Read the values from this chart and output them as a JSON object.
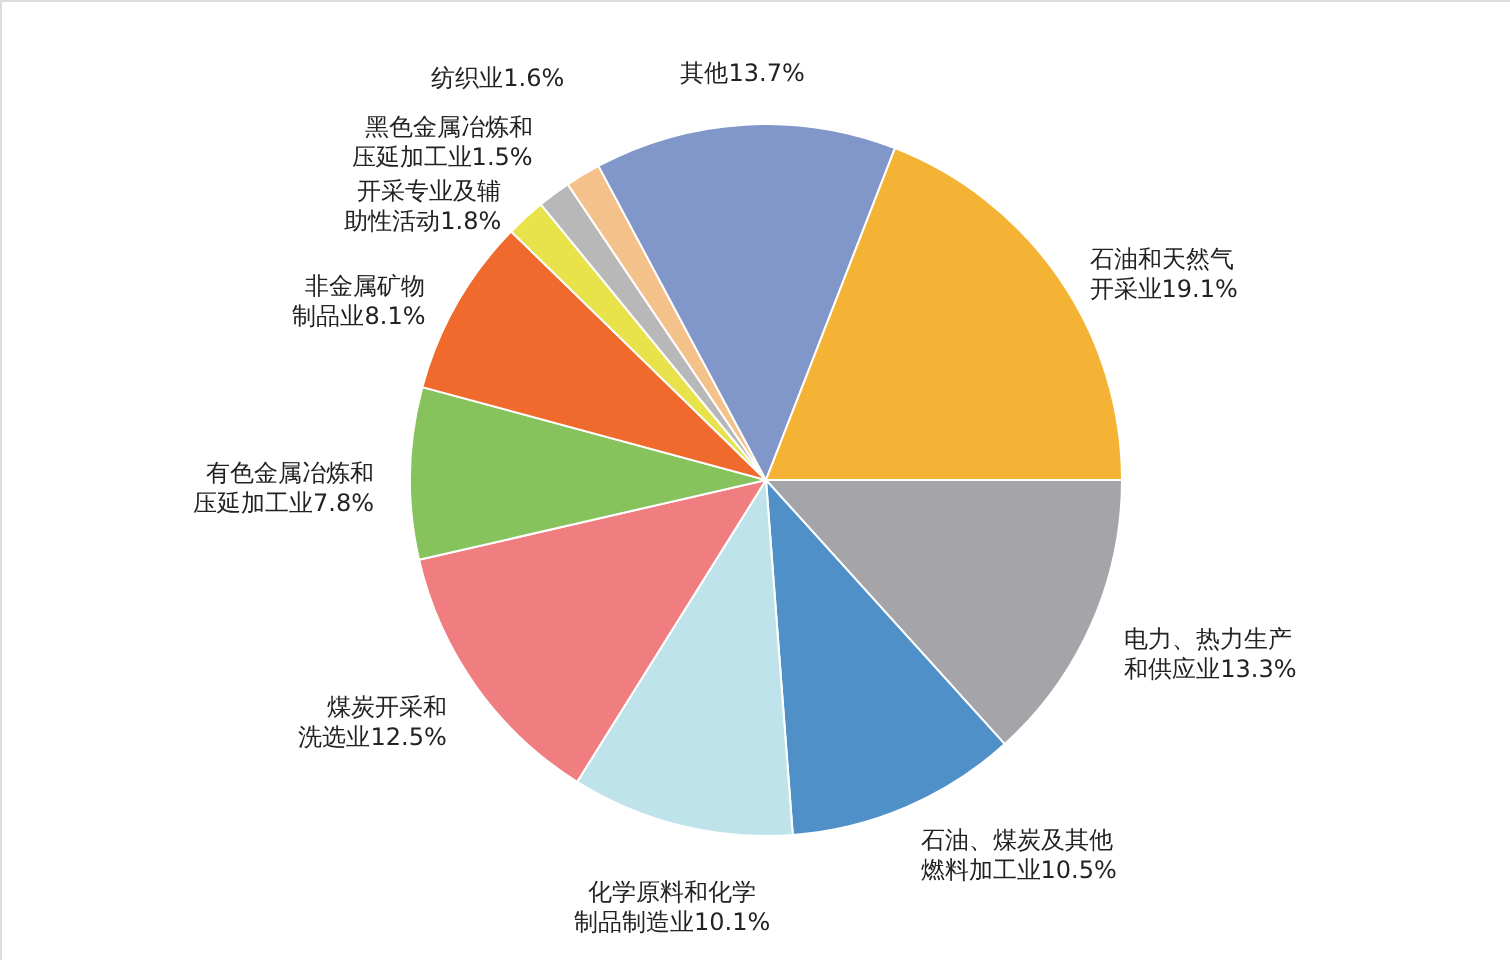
{
  "chart_data": {
    "type": "pie",
    "categories": [
      "电力、热力生产和供应业",
      "石油、煤炭及其他燃料加工业",
      "化学原料和化学制品制造业",
      "煤炭开采和洗选业",
      "有色金属冶炼和压延加工业",
      "非金属矿物制品业",
      "开采专业及辅助性活动",
      "黑色金属冶炼和压延加工业",
      "纺织业",
      "其他",
      "石油和天然气开采业"
    ],
    "values": [
      13.3,
      10.5,
      10.1,
      12.5,
      7.8,
      8.1,
      1.8,
      1.5,
      1.6,
      13.7,
      19.1
    ],
    "value_labels": [
      "13.3%",
      "10.5%",
      "10.1%",
      "12.5%",
      "7.8%",
      "8.1%",
      "1.8%",
      "1.5%",
      "1.6%",
      "13.7%",
      "19.1%"
    ],
    "colors": [
      "#a5a4a8",
      "#4f90c9",
      "#bfe3ea",
      "#f07d7f",
      "#86c35c",
      "#ef6a2c",
      "#e8e34a",
      "#b8b8b8",
      "#f5c18a",
      "#8197c9",
      "#f5b335"
    ]
  }
}
